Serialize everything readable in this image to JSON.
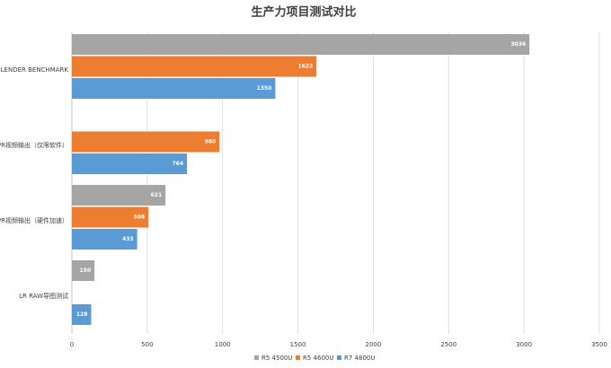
{
  "chart_data": {
    "type": "hbar",
    "title": "生产力项目测试对比",
    "categories": [
      "BLENDER BENCHMARK",
      "PR视频输出（仅限软件）",
      "PR视频输出（硬件加速）",
      "LR RAW导图测试"
    ],
    "series": [
      {
        "name": "R5 4500U",
        "color": "#a5a5a5",
        "values": [
          3036,
          null,
          621,
          150
        ]
      },
      {
        "name": "R5 4600U",
        "color": "#ed7d31",
        "values": [
          1623,
          980,
          508,
          null
        ]
      },
      {
        "name": "R7 4800U",
        "color": "#5b9bd5",
        "values": [
          1350,
          764,
          433,
          128
        ]
      }
    ],
    "xlim": [
      0,
      3500
    ],
    "xticks": [
      0,
      500,
      1000,
      1500,
      2000,
      2500,
      3000,
      3500
    ],
    "grid": true,
    "legend": "bottom"
  }
}
